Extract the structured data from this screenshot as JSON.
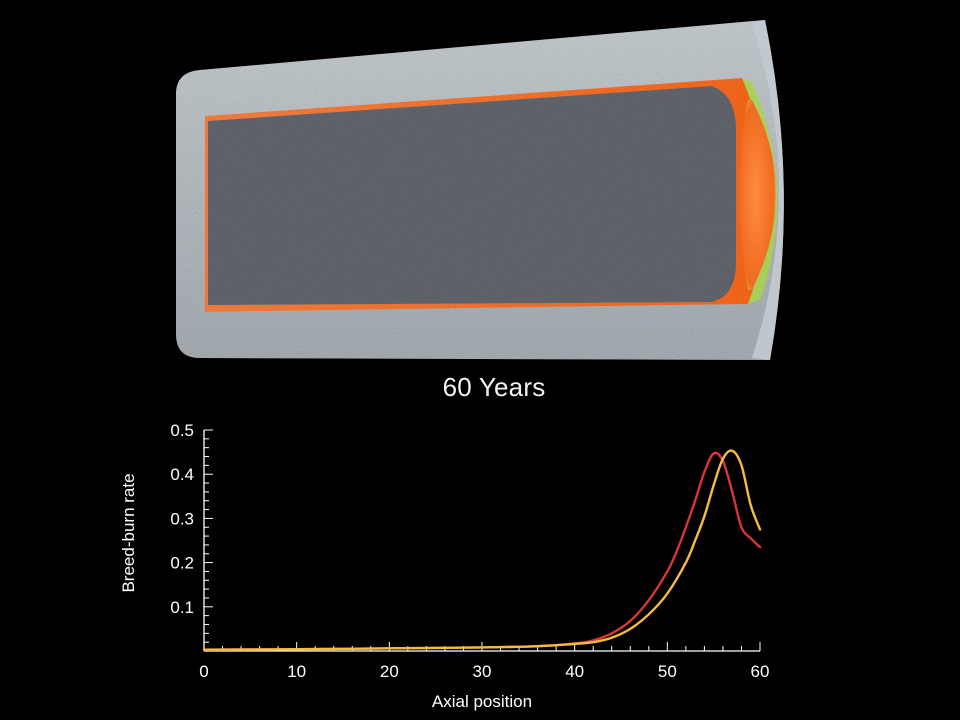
{
  "caption": "60 Years",
  "colors": {
    "background": "#000000",
    "red_series": "#d8343c",
    "yellow_series": "#f5bd3c",
    "cladding": "#b9c1c6",
    "fuel_core": "#5b5e66",
    "burn_front": "#ff7a2a"
  },
  "chart_data": {
    "type": "line",
    "title": "",
    "xlabel": "Axial position",
    "ylabel": "Breed-burn rate",
    "xlim": [
      0,
      60
    ],
    "ylim": [
      0,
      0.5
    ],
    "xticks": [
      0,
      10,
      20,
      30,
      40,
      50,
      60
    ],
    "yticks": [
      0.1,
      0.2,
      0.3,
      0.4,
      0.5
    ],
    "xtick_labels": [
      "0",
      "10",
      "20",
      "30",
      "40",
      "50",
      "60"
    ],
    "ytick_labels": [
      "0.1",
      "0.2",
      "0.3",
      "0.4",
      "0.5"
    ],
    "minor_x_step": 2,
    "minor_y_step": 0.02,
    "grid": false,
    "legend": "none",
    "series": [
      {
        "color": "#d8343c",
        "points": [
          [
            0,
            0.003
          ],
          [
            10,
            0.004
          ],
          [
            20,
            0.006
          ],
          [
            30,
            0.008
          ],
          [
            36,
            0.011
          ],
          [
            40,
            0.017
          ],
          [
            42,
            0.024
          ],
          [
            44,
            0.04
          ],
          [
            46,
            0.068
          ],
          [
            48,
            0.115
          ],
          [
            50,
            0.18
          ],
          [
            51,
            0.225
          ],
          [
            52,
            0.28
          ],
          [
            53,
            0.34
          ],
          [
            54,
            0.405
          ],
          [
            55,
            0.447
          ],
          [
            56,
            0.43
          ],
          [
            57,
            0.36
          ],
          [
            58,
            0.28
          ],
          [
            59,
            0.255
          ],
          [
            60,
            0.235
          ]
        ]
      },
      {
        "color": "#f5bd3c",
        "points": [
          [
            0,
            0.003
          ],
          [
            10,
            0.004
          ],
          [
            20,
            0.006
          ],
          [
            30,
            0.008
          ],
          [
            36,
            0.011
          ],
          [
            40,
            0.016
          ],
          [
            42,
            0.02
          ],
          [
            44,
            0.03
          ],
          [
            46,
            0.05
          ],
          [
            48,
            0.083
          ],
          [
            50,
            0.13
          ],
          [
            52,
            0.2
          ],
          [
            53,
            0.25
          ],
          [
            54,
            0.305
          ],
          [
            55,
            0.375
          ],
          [
            56,
            0.435
          ],
          [
            57,
            0.453
          ],
          [
            58,
            0.42
          ],
          [
            59,
            0.33
          ],
          [
            60,
            0.275
          ]
        ]
      }
    ]
  }
}
